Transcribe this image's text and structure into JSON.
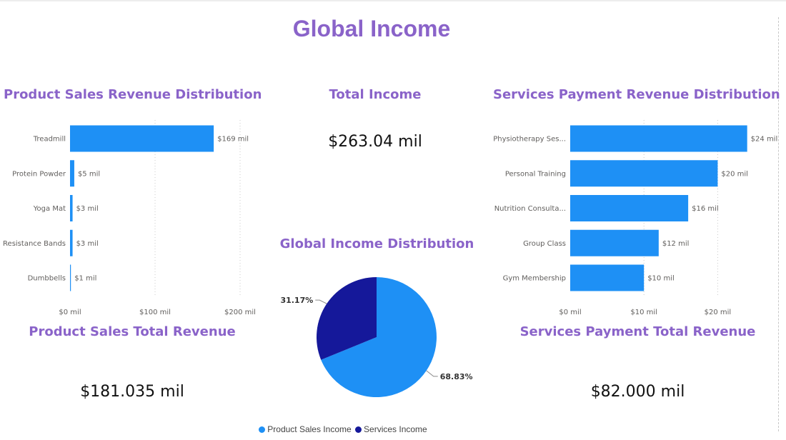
{
  "page": {
    "title": "Global Income"
  },
  "colors": {
    "title": "#8a63c9",
    "bar": "#1e90f5",
    "product_slice": "#1e90f5",
    "services_slice": "#15189a"
  },
  "kpis": {
    "total_income": {
      "title": "Total Income",
      "value": "$263.04 mil"
    },
    "product_total": {
      "title": "Product Sales Total Revenue",
      "value": "$181.035 mil"
    },
    "services_total": {
      "title": "Services Payment Total Revenue",
      "value": "$82.000 mil"
    }
  },
  "charts": {
    "product_title": "Product Sales Revenue Distribution",
    "services_title": "Services Payment Revenue Distribution",
    "pie_title": "Global Income Distribution"
  },
  "legend": {
    "product": "Product Sales Income",
    "services": "Services Income"
  },
  "chart_data": [
    {
      "type": "bar",
      "orientation": "horizontal",
      "title": "Product Sales Revenue Distribution",
      "categories": [
        "Treadmill",
        "Protein Powder",
        "Yoga Mat",
        "Resistance Bands",
        "Dumbbells"
      ],
      "values": [
        169,
        5,
        3,
        3,
        1
      ],
      "data_labels": [
        "$169 mil",
        "$5 mil",
        "$3 mil",
        "$3 mil",
        "$1 mil"
      ],
      "x_ticks": [
        0,
        100,
        200
      ],
      "x_tick_labels": [
        "$0 mil",
        "$100 mil",
        "$200 mil"
      ],
      "xlim": [
        0,
        200
      ],
      "grid": true
    },
    {
      "type": "bar",
      "orientation": "horizontal",
      "title": "Services Payment Revenue Distribution",
      "categories": [
        "Physiotherapy Ses...",
        "Personal Training",
        "Nutrition Consulta...",
        "Group Class",
        "Gym Membership"
      ],
      "values": [
        24,
        20,
        16,
        12,
        10
      ],
      "data_labels": [
        "$24 mil",
        "$20 mil",
        "$16 mil",
        "$12 mil",
        "$10 mil"
      ],
      "x_ticks": [
        0,
        10,
        20
      ],
      "x_tick_labels": [
        "$0 mil",
        "$10 mil",
        "$20 mil"
      ],
      "xlim": [
        0,
        25
      ],
      "grid": true
    },
    {
      "type": "pie",
      "title": "Global Income Distribution",
      "categories": [
        "Product Sales Income",
        "Services Income"
      ],
      "values": [
        68.83,
        31.17
      ],
      "data_labels": [
        "68.83%",
        "31.17%"
      ],
      "legend": "bottom"
    }
  ]
}
